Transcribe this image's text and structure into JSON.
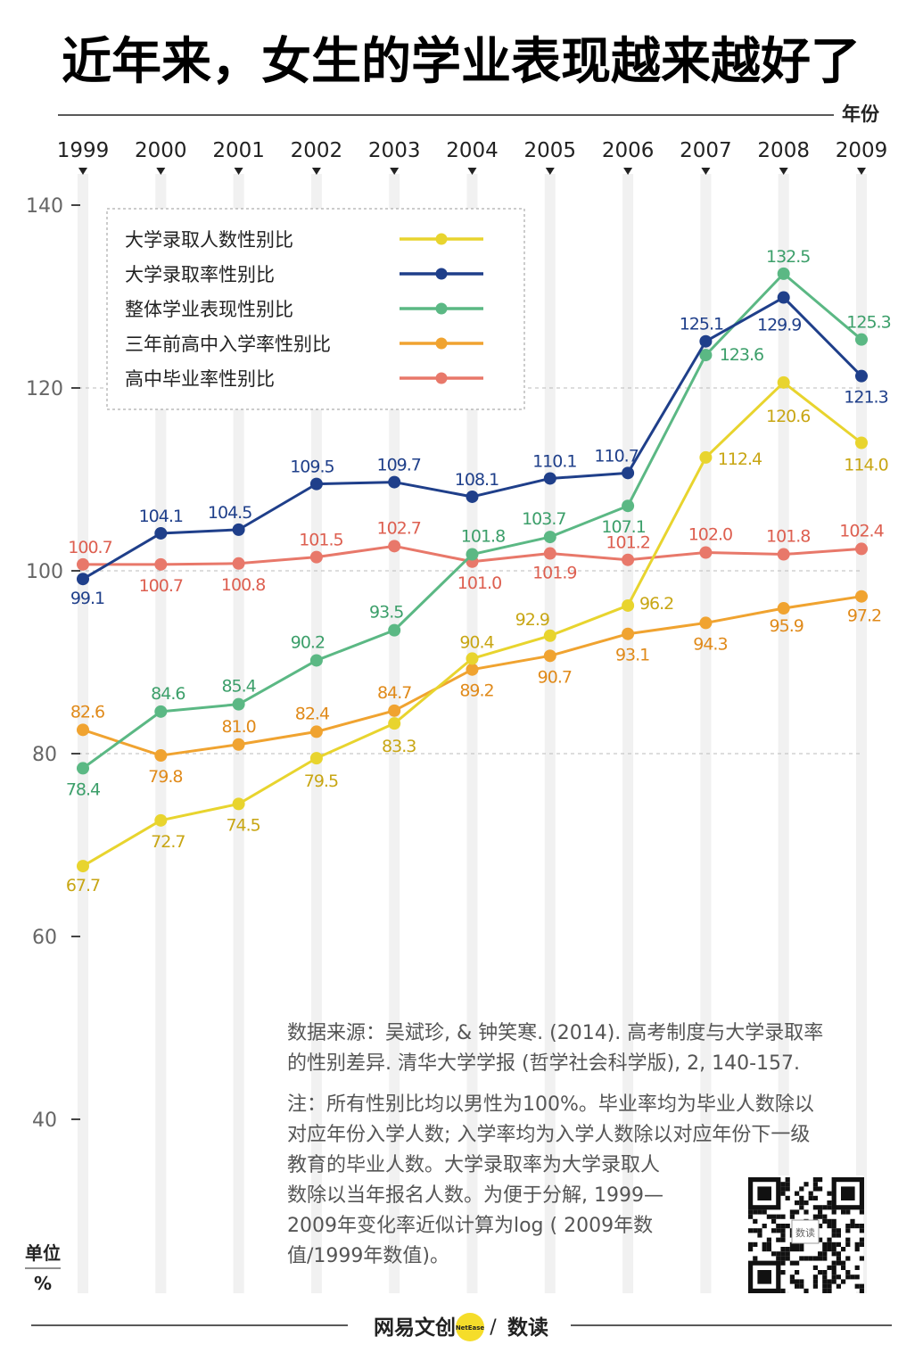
{
  "title": "近年来，女生的学业表现越来越好了",
  "x_axis_label": "年份",
  "unit_label": "单位",
  "unit_symbol": "%",
  "legend": [
    "大学录取人数性别比",
    "大学录取率性别比",
    "整体学业表现性别比",
    "三年前高中入学率性别比",
    "高中毕业率性别比"
  ],
  "source_lines": [
    "数据来源：吴斌珍, & 钟笑寒. (2014). 高考制度与大学录取率",
    "的性别差异. 清华大学学报 (哲学社会科学版), 2, 140-157."
  ],
  "note_lines": [
    "注：所有性别比均以男性为100%。毕业率均为毕业人数除以",
    "对应年份入学人数; 入学率均为入学人数除以对应年份下一级",
    "教育的毕业人数。大学录取率为大学录取人",
    "数除以当年报名人数。为便于分解, 1999—",
    "2009年变化率近似计算为log ( 2009年数",
    "值/1999年数值)。"
  ],
  "footer": {
    "brand_left": "网易文创",
    "badge": "NetEase",
    "brand_right": "数读"
  },
  "qr_label": "数读",
  "colors": {
    "yellow": "#e8d42e",
    "blue": "#1f3f8a",
    "green": "#5bb884",
    "orange": "#f0a330",
    "red": "#e8786a"
  },
  "chart_data": {
    "type": "line",
    "x": [
      "1999",
      "2000",
      "2001",
      "2002",
      "2003",
      "2004",
      "2005",
      "2006",
      "2007",
      "2008",
      "2009"
    ],
    "ylim": [
      40,
      140
    ],
    "yticks": [
      40,
      60,
      80,
      100,
      120,
      140
    ],
    "grid": "dashed lines at 80, 100, 120",
    "legend_position": "top-left",
    "series": [
      {
        "name": "大学录取人数性别比",
        "color": "yellow",
        "values": [
          67.7,
          72.7,
          74.5,
          79.5,
          83.3,
          90.4,
          92.9,
          96.2,
          112.4,
          120.6,
          114.0
        ],
        "labels": [
          "67.7",
          "72.7",
          "74.5",
          "79.5",
          "83.3",
          "90.4",
          "92.9",
          "96.2",
          "112.4",
          "120.6",
          "114.0"
        ]
      },
      {
        "name": "大学录取率性别比",
        "color": "blue",
        "values": [
          99.1,
          104.1,
          104.5,
          109.5,
          109.7,
          108.1,
          110.1,
          110.7,
          125.1,
          129.9,
          121.3
        ],
        "labels": [
          "99.1",
          "104.1",
          "104.5",
          "109.5",
          "109.7",
          "108.1",
          "110.1",
          "110.7",
          "125.1",
          "129.9",
          "121.3"
        ]
      },
      {
        "name": "整体学业表现性别比",
        "color": "green",
        "values": [
          78.4,
          84.6,
          85.4,
          90.2,
          93.5,
          101.8,
          103.7,
          107.1,
          123.6,
          132.5,
          125.3
        ],
        "labels": [
          "78.4",
          "84.6",
          "85.4",
          "90.2",
          "93.5",
          "101.8",
          "103.7",
          "107.1",
          "123.6",
          "132.5",
          "125.3"
        ]
      },
      {
        "name": "三年前高中入学率性别比",
        "color": "orange",
        "values": [
          82.6,
          79.8,
          81.0,
          82.4,
          84.7,
          89.2,
          90.7,
          93.1,
          94.3,
          95.9,
          97.2
        ],
        "labels": [
          "82.6",
          "79.8",
          "81.0",
          "82.4",
          "84.7",
          "89.2",
          "90.7",
          "93.1",
          "94.3",
          "95.9",
          "97.2"
        ]
      },
      {
        "name": "高中毕业率性别比",
        "color": "red",
        "values": [
          100.7,
          100.7,
          100.8,
          101.5,
          102.7,
          101.0,
          101.9,
          101.2,
          102.0,
          101.8,
          102.4
        ],
        "labels": [
          "100.7",
          "100.7",
          "100.8",
          "101.5",
          "102.7",
          "101.0",
          "101.9",
          "101.2",
          "102.0",
          "101.8",
          "102.4"
        ]
      }
    ]
  }
}
